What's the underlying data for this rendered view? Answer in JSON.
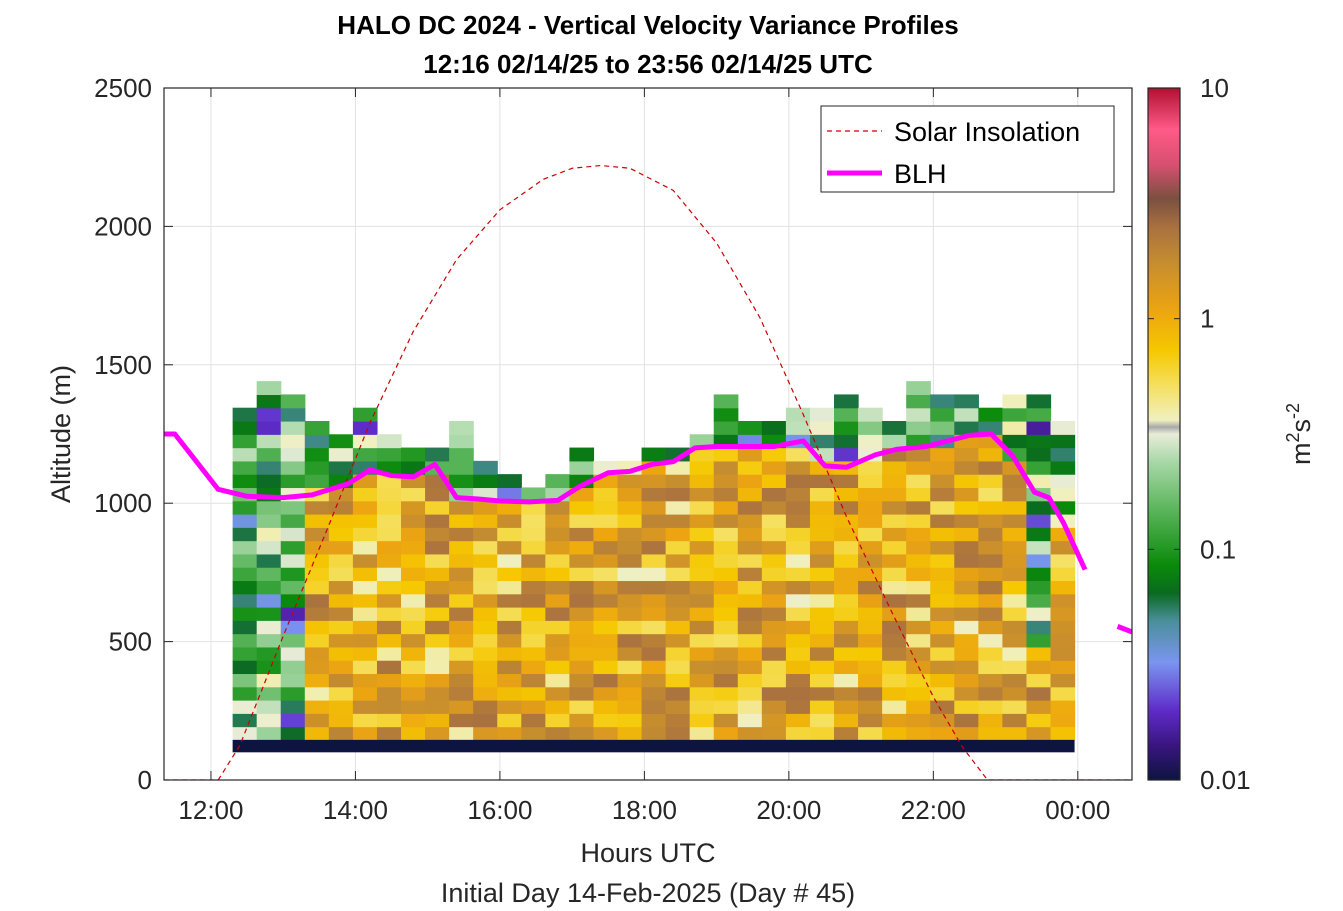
{
  "chart_data": {
    "type": "heatmap",
    "title": "HALO DC 2024 - Vertical Velocity Variance Profiles",
    "subtitle": "12:16 02/14/25 to 23:56 02/14/25  UTC",
    "xlabel": "Hours UTC",
    "xlabel2": "Initial Day 14-Feb-2025 (Day # 45)",
    "ylabel": "Altitude (m)",
    "xlim": [
      11.35,
      24.75
    ],
    "ylim": [
      0,
      2500
    ],
    "x_ticks": [
      12,
      14,
      16,
      18,
      20,
      22,
      24
    ],
    "x_tick_labels": [
      "12:00",
      "14:00",
      "16:00",
      "18:00",
      "20:00",
      "22:00",
      "00:00"
    ],
    "y_ticks": [
      0,
      500,
      1000,
      1500,
      2000,
      2500
    ],
    "y_tick_labels": [
      "0",
      "500",
      "1000",
      "1500",
      "2000",
      "2500"
    ],
    "grid": true,
    "legend_position": "top-right",
    "colorbar": {
      "scale": "log",
      "range": [
        0.01,
        10
      ],
      "tick_values": [
        0.01,
        0.1,
        1,
        10
      ],
      "tick_labels": [
        "0.01",
        "0.1",
        "1",
        "10"
      ],
      "label_base": "m",
      "label_exp1": "2",
      "label_mid": "s",
      "label_exp2": "-2"
    },
    "heatmap": {
      "time_start": 12.3,
      "time_step": 0.333,
      "num_columns": 35,
      "altitude_start": 100,
      "altitude_step": 48,
      "column_tops": [
        1340,
        1430,
        1390,
        1290,
        1240,
        1340,
        1240,
        1190,
        1190,
        1290,
        1140,
        1100,
        1040,
        1090,
        1190,
        1140,
        1140,
        1190,
        1190,
        1240,
        1390,
        1290,
        1290,
        1340,
        1340,
        1380,
        1340,
        1290,
        1430,
        1390,
        1380,
        1340,
        1380,
        1380,
        1290
      ],
      "zones": [
        {
          "name": "bottom_band",
          "alt_max": 145,
          "value": 0.01
        },
        {
          "name": "boundary_layer",
          "value_range": [
            0.5,
            2.5
          ]
        },
        {
          "name": "upper",
          "value_range": [
            0.05,
            0.4
          ]
        }
      ]
    },
    "series": [
      {
        "name": "Solar Insolation",
        "style": "dashed",
        "color": "#cc0000",
        "x": [
          11.35,
          12.1,
          12.4,
          13.0,
          13.6,
          14.2,
          14.8,
          15.4,
          16.0,
          16.6,
          17.0,
          17.4,
          17.8,
          18.4,
          19.0,
          19.6,
          20.2,
          20.8,
          21.4,
          22.0,
          22.4,
          22.75,
          23.0,
          24.75
        ],
        "y": [
          0,
          0,
          125,
          520,
          900,
          1290,
          1620,
          1880,
          2060,
          2170,
          2210,
          2220,
          2210,
          2130,
          1940,
          1670,
          1320,
          950,
          620,
          300,
          120,
          0,
          0,
          0
        ]
      },
      {
        "name": "BLH",
        "style": "solid",
        "color": "#ff00ff",
        "x": [
          11.35,
          11.5,
          12.1,
          12.5,
          13.0,
          13.4,
          13.9,
          14.2,
          14.5,
          14.8,
          15.1,
          15.4,
          15.7,
          16.0,
          16.4,
          16.8,
          17.1,
          17.5,
          17.8,
          18.1,
          18.4,
          18.7,
          19.0,
          19.4,
          19.8,
          20.1,
          20.2,
          20.5,
          20.8,
          21.2,
          21.5,
          21.9,
          22.2,
          22.5,
          22.8,
          23.1,
          23.4,
          23.6,
          23.8,
          24.1
        ],
        "y": [
          1250,
          1250,
          1050,
          1025,
          1020,
          1030,
          1070,
          1120,
          1100,
          1095,
          1140,
          1020,
          1015,
          1008,
          1005,
          1010,
          1060,
          1110,
          1115,
          1140,
          1150,
          1200,
          1205,
          1205,
          1205,
          1220,
          1225,
          1135,
          1130,
          1175,
          1195,
          1205,
          1225,
          1245,
          1250,
          1170,
          1040,
          1020,
          930,
          760
        ],
        "extra_segment": {
          "x": [
            24.55,
            24.75
          ],
          "y": [
            555,
            535
          ]
        }
      }
    ]
  }
}
